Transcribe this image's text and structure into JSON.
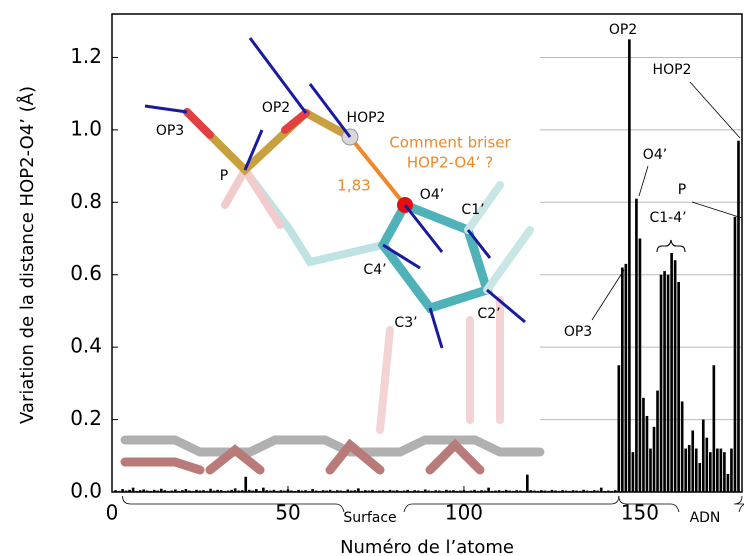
{
  "chart_data": {
    "type": "bar",
    "xlabel": "Numéro de l’atome",
    "ylabel": "Variation de la distance HOP2-O4’ (Å)",
    "color": "#000000",
    "grid": true,
    "xlim": [
      0,
      179
    ],
    "ylim": [
      0,
      1.32
    ],
    "xticks": [
      0,
      50,
      100,
      150
    ],
    "yticks": [
      {
        "value": 0,
        "label": "0.0"
      },
      0.2,
      0.4,
      0.6,
      0.8,
      {
        "value": 1,
        "label": "1.0"
      },
      1.2
    ],
    "x": [
      1,
      2,
      3,
      4,
      5,
      6,
      7,
      8,
      9,
      10,
      11,
      12,
      13,
      14,
      15,
      16,
      17,
      18,
      19,
      20,
      21,
      22,
      23,
      24,
      25,
      26,
      27,
      28,
      29,
      30,
      31,
      32,
      33,
      34,
      35,
      36,
      37,
      38,
      39,
      40,
      41,
      42,
      43,
      44,
      45,
      46,
      47,
      48,
      49,
      50,
      51,
      52,
      53,
      54,
      55,
      56,
      57,
      58,
      59,
      60,
      61,
      62,
      63,
      64,
      65,
      66,
      67,
      68,
      69,
      70,
      71,
      72,
      73,
      74,
      75,
      76,
      77,
      78,
      79,
      80,
      81,
      82,
      83,
      84,
      85,
      86,
      87,
      88,
      89,
      90,
      91,
      92,
      93,
      94,
      95,
      96,
      97,
      98,
      99,
      100,
      101,
      102,
      103,
      104,
      105,
      106,
      107,
      108,
      109,
      110,
      111,
      112,
      113,
      114,
      115,
      116,
      117,
      118,
      119,
      120,
      121,
      122,
      123,
      124,
      125,
      126,
      127,
      128,
      129,
      130,
      131,
      132,
      133,
      134,
      135,
      136,
      137,
      138,
      139,
      140,
      141,
      142,
      143,
      144,
      145,
      146,
      147,
      148,
      149,
      150,
      151,
      152,
      153,
      154,
      155,
      156,
      157,
      158,
      159,
      160,
      161,
      162,
      163,
      164,
      165,
      166,
      167,
      168,
      169,
      170,
      171,
      172,
      173,
      174,
      175,
      176,
      177,
      178
    ],
    "values": [
      0.005,
      0.003,
      0.008,
      0.004,
      0.006,
      0.012,
      0.003,
      0.005,
      0.007,
      0.004,
      0.003,
      0.006,
      0.004,
      0.009,
      0.005,
      0.003,
      0.004,
      0.007,
      0.003,
      0.005,
      0.008,
      0.004,
      0.003,
      0.006,
      0.004,
      0.005,
      0.003,
      0.009,
      0.004,
      0.006,
      0.005,
      0.003,
      0.004,
      0.006,
      0.01,
      0.004,
      0.005,
      0.042,
      0.006,
      0.004,
      0.008,
      0.003,
      0.012,
      0.005,
      0.004,
      0.006,
      0.003,
      0.005,
      0.004,
      0.007,
      0.004,
      0.003,
      0.006,
      0.004,
      0.005,
      0.003,
      0.008,
      0.004,
      0.003,
      0.005,
      0.004,
      0.006,
      0.003,
      0.005,
      0.004,
      0.003,
      0.007,
      0.004,
      0.005,
      0.01,
      0.003,
      0.005,
      0.004,
      0.006,
      0.003,
      0.004,
      0.005,
      0.003,
      0.006,
      0.004,
      0.005,
      0.003,
      0.004,
      0.006,
      0.003,
      0.005,
      0.004,
      0.003,
      0.007,
      0.004,
      0.003,
      0.005,
      0.004,
      0.003,
      0.006,
      0.004,
      0.005,
      0.003,
      0.004,
      0.005,
      0.003,
      0.004,
      0.006,
      0.003,
      0.005,
      0.004,
      0.012,
      0.003,
      0.004,
      0.005,
      0.003,
      0.006,
      0.004,
      0.003,
      0.005,
      0.004,
      0.003,
      0.048,
      0.005,
      0.004,
      0.003,
      0.005,
      0.004,
      0.003,
      0.006,
      0.004,
      0.003,
      0.005,
      0.004,
      0.003,
      0.005,
      0.004,
      0.003,
      0.006,
      0.004,
      0.003,
      0.005,
      0.004,
      0.012,
      0.003,
      0.004,
      0.003,
      0.005,
      0.35,
      0.62,
      0.63,
      1.25,
      0.11,
      0.81,
      0.7,
      0.26,
      0.21,
      0.12,
      0.18,
      0.28,
      0.6,
      0.61,
      0.6,
      0.66,
      0.64,
      0.58,
      0.25,
      0.12,
      0.13,
      0.17,
      0.12,
      0.08,
      0.2,
      0.15,
      0.11,
      0.35,
      0.12,
      0.12,
      0.11,
      0.05,
      0.12,
      0.76,
      0.97
    ],
    "annotations": [
      "OP2",
      "HOP2",
      "O4’",
      "P",
      "C1-4’",
      "OP3"
    ],
    "regions": [
      "Surface",
      "ADN"
    ]
  },
  "inset": {
    "atoms": [
      "OP3",
      "P",
      "OP2",
      "HOP2",
      "O4’",
      "C1’",
      "C4’",
      "C3’",
      "C2’"
    ],
    "distance": "1,83",
    "question": [
      "Comment briser",
      "HOP2-O4’ ?"
    ]
  }
}
